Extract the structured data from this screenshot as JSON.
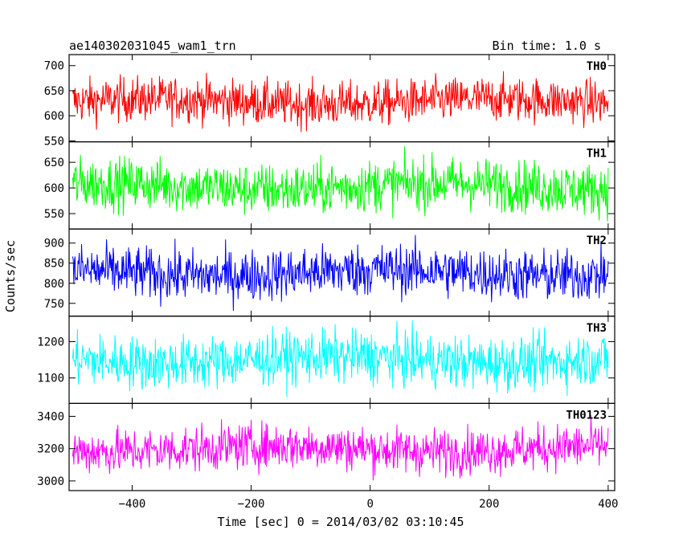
{
  "chart_data": {
    "type": "line",
    "title_left": "ae140302031045_wam1_trn",
    "title_right": "Bin time: 1.0 s",
    "xlabel": "Time [sec] 0 = 2014/03/02 03:10:45",
    "ylabel": "Counts/sec",
    "xlim": [
      -506,
      411
    ],
    "x_range": [
      -500,
      400
    ],
    "x_ticks": [
      -400,
      -200,
      0,
      200,
      400
    ],
    "x_tick_labels": [
      "−400",
      "−200",
      "0",
      "200",
      "400"
    ],
    "grid": false,
    "panels": [
      {
        "name": "TH0",
        "color": "#ff0000",
        "ylim": [
          548,
          722
        ],
        "mean": 628,
        "noise": 22,
        "yticks": [
          550,
          600,
          650,
          700
        ]
      },
      {
        "name": "TH1",
        "color": "#00ff00",
        "ylim": [
          520,
          690
        ],
        "mean": 603,
        "noise": 25,
        "yticks": [
          550,
          600,
          650
        ]
      },
      {
        "name": "TH2",
        "color": "#0000ff",
        "ylim": [
          718,
          935
        ],
        "mean": 826,
        "noise": 32,
        "yticks": [
          750,
          800,
          850,
          900
        ]
      },
      {
        "name": "TH3",
        "color": "#00ffff",
        "ylim": [
          1030,
          1270
        ],
        "mean": 1150,
        "noise": 36,
        "yticks": [
          1100,
          1200
        ]
      },
      {
        "name": "TH0123",
        "color": "#ff00ff",
        "ylim": [
          2940,
          3480
        ],
        "mean": 3200,
        "noise": 70,
        "yticks": [
          3000,
          3200,
          3400
        ]
      }
    ]
  }
}
